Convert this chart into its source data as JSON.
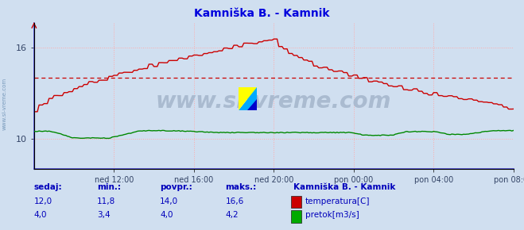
{
  "title": "Kamniška B. - Kamnik",
  "title_color": "#0000dd",
  "bg_color": "#d0dff0",
  "plot_bg_color": "#d0dff0",
  "grid_color": "#ffaaaa",
  "temp_color": "#cc0000",
  "flow_color": "#008800",
  "avg_line_color": "#cc0000",
  "avg_temp": 14.0,
  "xlim": [
    0,
    288
  ],
  "ylim_temp_lo": 8.0,
  "ylim_temp_hi": 17.6,
  "ylim_flow_lo": 0.0,
  "ylim_flow_hi": 16.0,
  "tick_labels_x": [
    "ned 12:00",
    "ned 16:00",
    "ned 20:00",
    "pon 00:00",
    "pon 04:00",
    "pon 08:00"
  ],
  "tick_positions_x": [
    48,
    96,
    144,
    192,
    240,
    288
  ],
  "ytick_vals": [
    10,
    16
  ],
  "watermark": "www.si-vreme.com",
  "watermark_color": "#aabbd0",
  "footer_color": "#0000bb",
  "sedaj": "sedaj:",
  "min_label": "min.:",
  "povpr_label": "povpr.:",
  "maks_label": "maks.:",
  "station_label": "Kamniška B. - Kamnik",
  "temp_label": "temperatura[C]",
  "flow_label": "pretok[m3/s]",
  "sedaj_temp": "12,0",
  "min_temp": "11,8",
  "povpr_temp": "14,0",
  "maks_temp": "16,6",
  "sedaj_flow": "4,0",
  "min_flow": "3,4",
  "povpr_flow": "4,0",
  "maks_flow": "4,2",
  "left_spine_color": "#4444cc",
  "bottom_spine_color": "#4444cc",
  "right_arrow_color": "#cc0000",
  "side_label_color": "#7799bb"
}
